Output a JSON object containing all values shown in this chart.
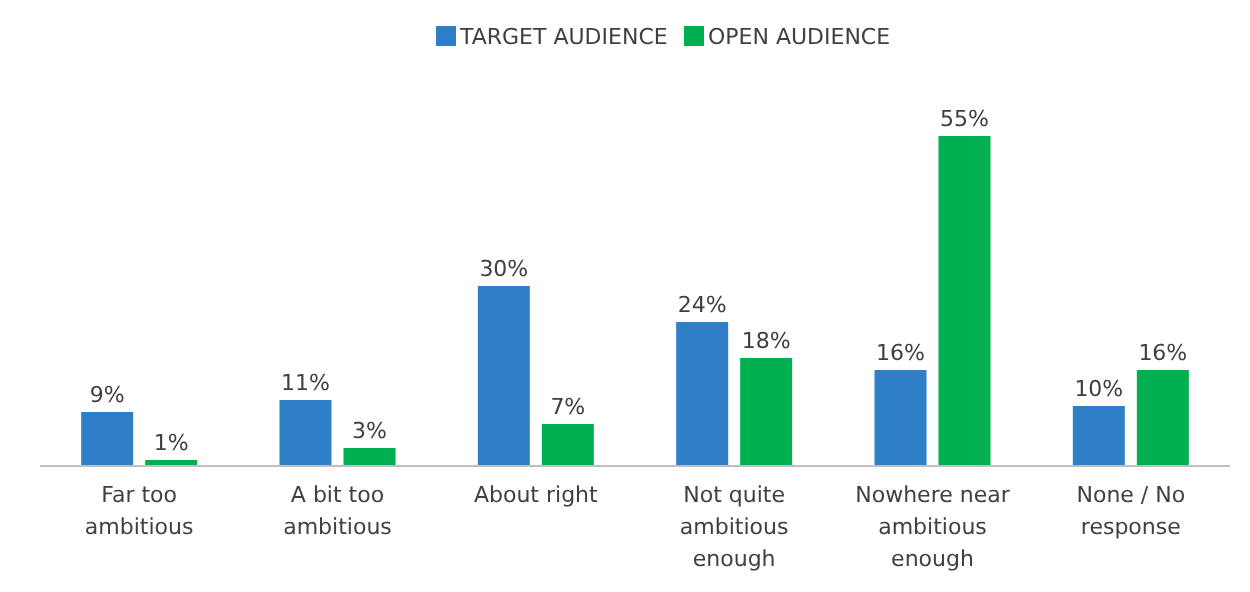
{
  "chart_data": {
    "type": "bar",
    "categories": [
      "Far too ambitious",
      "A bit too ambitious",
      "About right",
      "Not quite ambitious enough",
      "Nowhere near ambitious enough",
      "None / No response"
    ],
    "series": [
      {
        "name": "TARGET AUDIENCE",
        "color": "#2e7fc8",
        "values": [
          9,
          11,
          30,
          24,
          16,
          10
        ],
        "value_labels": [
          "9%",
          "11%",
          "30%",
          "24%",
          "16%",
          "10%"
        ]
      },
      {
        "name": "OPEN AUDIENCE",
        "color": "#00b050",
        "values": [
          1,
          3,
          7,
          18,
          55,
          16
        ],
        "value_labels": [
          "1%",
          "3%",
          "7%",
          "18%",
          "55%",
          "16%"
        ]
      }
    ],
    "legend": "top"
  }
}
